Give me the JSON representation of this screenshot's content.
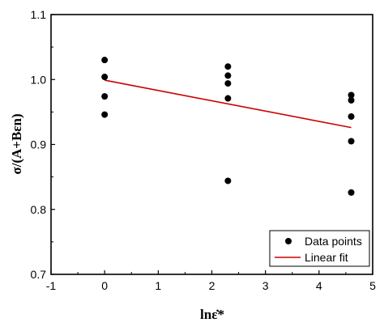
{
  "chart_data": {
    "type": "scatter",
    "xlabel": "lnε̇*",
    "ylabel": "σ/(A+Bεn)",
    "xlim": [
      -1,
      5
    ],
    "ylim": [
      0.7,
      1.1
    ],
    "x_ticks": [
      -1,
      0,
      1,
      2,
      3,
      4,
      5
    ],
    "x_tick_labels": [
      "-1",
      "0",
      "1",
      "2",
      "3",
      "4",
      "5"
    ],
    "y_ticks": [
      0.7,
      0.8,
      0.9,
      1.0,
      1.1
    ],
    "y_tick_labels": [
      "0.7",
      "0.8",
      "0.9",
      "1.0",
      "1.1"
    ],
    "grid": false,
    "legend_position": "bottom-right",
    "series": [
      {
        "name": "Data points",
        "type": "scatter",
        "color": "#000000",
        "points": [
          [
            0,
            1.03
          ],
          [
            0,
            1.004
          ],
          [
            0,
            0.974
          ],
          [
            0,
            0.946
          ],
          [
            2.3,
            1.02
          ],
          [
            2.3,
            1.006
          ],
          [
            2.3,
            0.994
          ],
          [
            2.3,
            0.971
          ],
          [
            2.3,
            0.844
          ],
          [
            4.6,
            0.976
          ],
          [
            4.6,
            0.968
          ],
          [
            4.6,
            0.943
          ],
          [
            4.6,
            0.905
          ],
          [
            4.6,
            0.826
          ]
        ]
      },
      {
        "name": "Linear fit",
        "type": "line",
        "color": "#cc0000",
        "points": [
          [
            0,
            0.999
          ],
          [
            4.6,
            0.926
          ]
        ]
      }
    ]
  }
}
